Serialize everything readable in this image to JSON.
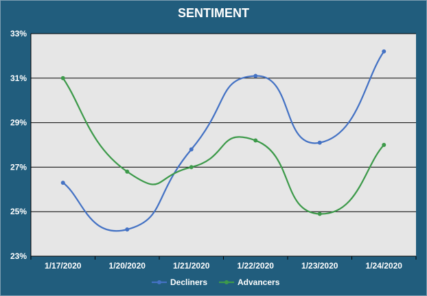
{
  "chart_data": {
    "type": "line",
    "title": "SENTIMENT",
    "categories": [
      "1/17/2020",
      "1/20/2020",
      "1/21/2020",
      "1/22/2020",
      "1/23/2020",
      "1/24/2020"
    ],
    "series": [
      {
        "name": "Decliners",
        "color": "#4472c4",
        "values": [
          26.3,
          24.2,
          27.8,
          31.1,
          28.1,
          32.2
        ]
      },
      {
        "name": "Advancers",
        "color": "#3d9a4a",
        "values": [
          31.0,
          26.8,
          27.0,
          28.2,
          24.9,
          28.0
        ]
      }
    ],
    "ylim": [
      23,
      33
    ],
    "yticks": [
      23,
      25,
      27,
      29,
      31,
      33
    ],
    "ytick_labels": [
      "23%",
      "25%",
      "27%",
      "29%",
      "31%",
      "33%"
    ],
    "grid": true,
    "legend_position": "bottom",
    "plot_background": "#e6e6e6"
  }
}
